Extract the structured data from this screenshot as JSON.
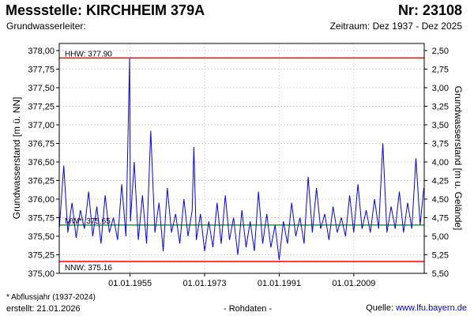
{
  "header": {
    "title": "Messstelle: KIRCHHEIM 379A",
    "station_nr": "Nr: 23108",
    "aquifer": "Grundwasserleiter:",
    "period": "Zeitraum: Dez 1937 - Dez 2025"
  },
  "footer": {
    "footnote": "* Abflussjahr (1937-2024)",
    "created": "erstellt:  21.01.2026",
    "raw_label": "- Rohdaten -",
    "source_prefix": "Quelle: ",
    "source_link": "www.lfu.bayern.de"
  },
  "chart_data": {
    "type": "line",
    "ylabel_left": "Grundwasserstand [m ü. NN]",
    "ylabel_right": "Grundwasserstand [m u. Gelände]",
    "ylim": [
      375.0,
      378.0
    ],
    "xlim": [
      "1937-12-01",
      "2025-12-31"
    ],
    "y_ticks_left": [
      "378,00",
      "377,75",
      "377,50",
      "377,25",
      "377,00",
      "376,75",
      "376,50",
      "376,25",
      "376,00",
      "375,75",
      "375,50",
      "375,25",
      "375,00"
    ],
    "y_ticks_right": [
      "2,50",
      "2,75",
      "3,00",
      "3,25",
      "3,50",
      "3,75",
      "4,00",
      "4,25",
      "4,50",
      "4,75",
      "5,00",
      "5,25",
      "5,50"
    ],
    "x_ticks": [
      "01.01.1955",
      "01.01.1973",
      "01.01.1991",
      "01.01.2009"
    ],
    "grid": true,
    "reference_lines": [
      {
        "label": "HHW: 377.90",
        "value": 377.9,
        "color": "#ff0000"
      },
      {
        "label": "MW*: 375.65",
        "value": 375.65,
        "color": "#008000"
      },
      {
        "label": "NNW: 375.16",
        "value": 375.16,
        "color": "#ff0000"
      }
    ],
    "series": [
      {
        "color": "#0000ff",
        "x": [
          1937.95,
          1939.0,
          1940.0,
          1941.0,
          1942.0,
          1943.0,
          1944.0,
          1945.0,
          1946.0,
          1947.0,
          1948.0,
          1949.0,
          1950.0,
          1951.0,
          1952.0,
          1953.0,
          1954.0,
          1954.9,
          1955.1,
          1956.0,
          1957.0,
          1958.0,
          1959.0,
          1960.0,
          1961.0,
          1962.0,
          1963.0,
          1964.0,
          1965.0,
          1966.0,
          1967.0,
          1968.0,
          1969.0,
          1970.0,
          1970.4,
          1971.0,
          1972.0,
          1973.0,
          1974.0,
          1975.0,
          1976.0,
          1977.0,
          1978.0,
          1979.0,
          1980.0,
          1981.0,
          1982.0,
          1983.0,
          1984.0,
          1985.0,
          1986.0,
          1987.0,
          1988.0,
          1989.0,
          1990.0,
          1991.0,
          1992.0,
          1993.0,
          1994.0,
          1995.0,
          1996.0,
          1997.0,
          1998.0,
          1999.0,
          2000.0,
          2001.0,
          2002.0,
          2003.0,
          2004.0,
          2005.0,
          2006.0,
          2007.0,
          2008.0,
          2009.0,
          2010.0,
          2011.0,
          2012.0,
          2013.0,
          2014.0,
          2015.0,
          2016.0,
          2017.0,
          2018.0,
          2019.0,
          2020.0,
          2021.0,
          2022.0,
          2023.0,
          2024.0,
          2025.0,
          2025.9
        ],
        "y": [
          375.62,
          376.45,
          375.55,
          375.95,
          375.48,
          375.85,
          375.6,
          376.1,
          375.5,
          375.9,
          375.4,
          376.05,
          375.55,
          375.75,
          375.45,
          376.2,
          375.5,
          377.9,
          375.7,
          376.5,
          375.45,
          376.05,
          375.4,
          376.92,
          375.55,
          375.95,
          375.3,
          376.15,
          375.55,
          375.8,
          375.4,
          376.0,
          375.5,
          375.85,
          376.7,
          375.45,
          375.8,
          375.3,
          375.7,
          375.35,
          375.95,
          375.4,
          376.05,
          375.45,
          375.75,
          375.25,
          375.85,
          375.35,
          375.7,
          375.3,
          376.1,
          375.4,
          375.8,
          375.35,
          375.65,
          375.18,
          375.7,
          375.4,
          375.95,
          375.5,
          375.75,
          375.4,
          376.3,
          375.55,
          376.15,
          375.6,
          375.8,
          375.45,
          375.9,
          375.55,
          375.75,
          375.5,
          376.05,
          375.55,
          376.2,
          375.6,
          375.85,
          375.55,
          376.0,
          375.6,
          376.75,
          375.55,
          375.9,
          375.6,
          376.1,
          375.55,
          375.95,
          375.6,
          376.55,
          375.65,
          376.15
        ]
      }
    ]
  }
}
